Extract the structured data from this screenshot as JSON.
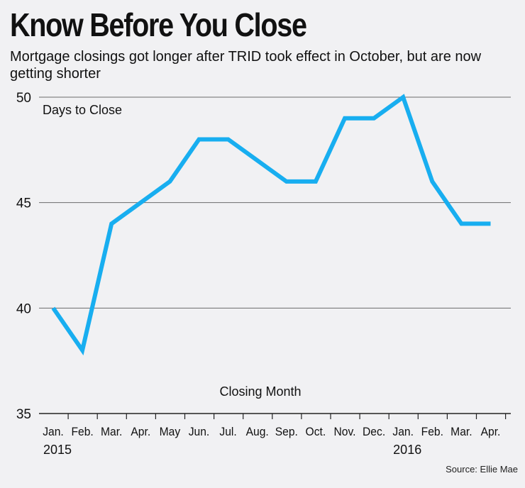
{
  "title": "Know Before You Close",
  "subtitle": "Mortgage closings got longer after TRID took effect in October, but are now getting shorter",
  "source": "Source: Ellie Mae",
  "colors": {
    "line": "#18aef0",
    "grid": "#6b6b6b",
    "background": "#f1f1f3"
  },
  "chart_data": {
    "type": "line",
    "title": "Know Before You Close",
    "ylabel": "Days to Close",
    "xlabel": "Closing Month",
    "categories": [
      "Jan.",
      "Feb.",
      "Mar.",
      "Apr.",
      "May",
      "Jun.",
      "Jul.",
      "Aug.",
      "Sep.",
      "Oct.",
      "Nov.",
      "Dec.",
      "Jan.",
      "Feb.",
      "Mar.",
      "Apr."
    ],
    "year_labels": [
      {
        "index": 0,
        "label": "2015"
      },
      {
        "index": 12,
        "label": "2016"
      }
    ],
    "series": [
      {
        "name": "Days to Close",
        "values": [
          40,
          38,
          44,
          45,
          46,
          48,
          48,
          47,
          46,
          46,
          49,
          49,
          50,
          46,
          44,
          44
        ]
      }
    ],
    "ylim": [
      35,
      50
    ],
    "yticks": [
      35,
      40,
      45,
      50
    ],
    "grid": true
  }
}
